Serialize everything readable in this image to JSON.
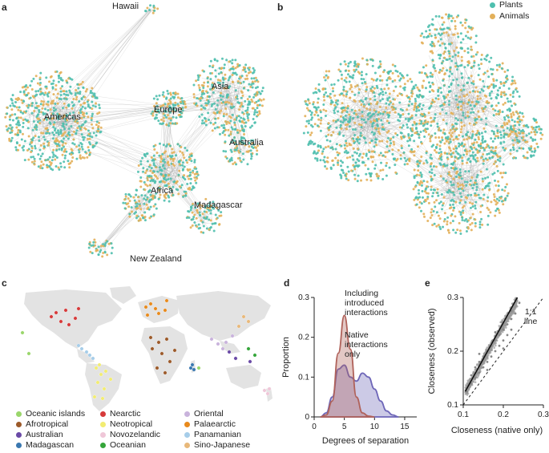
{
  "panels": {
    "a": {
      "letter": "a",
      "regions": [
        "Hawaii",
        "Americas",
        "Europe",
        "Asia",
        "Australia",
        "Africa",
        "Madagascar",
        "New Zealand"
      ]
    },
    "b": {
      "letter": "b",
      "legend": [
        {
          "label": "Plants",
          "color": "#4fbfae"
        },
        {
          "label": "Animals",
          "color": "#e3b05a"
        }
      ]
    },
    "c": {
      "letter": "c",
      "legend": [
        {
          "label": "Oceanic islands",
          "color": "#9ad66b"
        },
        {
          "label": "Afrotropical",
          "color": "#9c5a2a"
        },
        {
          "label": "Australian",
          "color": "#6a4aa6"
        },
        {
          "label": "Madagascan",
          "color": "#3a78b0"
        },
        {
          "label": "Nearctic",
          "color": "#d63a3a"
        },
        {
          "label": "Neotropical",
          "color": "#f2ec72"
        },
        {
          "label": "Novozelandic",
          "color": "#efc7d8"
        },
        {
          "label": "Oceanian",
          "color": "#35a53a"
        },
        {
          "label": "Oriental",
          "color": "#c9b3dc"
        },
        {
          "label": "Palaearctic",
          "color": "#e88a1c"
        },
        {
          "label": "Panamanian",
          "color": "#a6cde9"
        },
        {
          "label": "Sino-Japanese",
          "color": "#e8b87a"
        }
      ]
    },
    "d": {
      "letter": "d",
      "annotation_introduced": [
        "Including",
        "introduced",
        "interactions"
      ],
      "annotation_native": [
        "Native",
        "interactions",
        "only"
      ]
    },
    "e": {
      "letter": "e",
      "annotation_line": [
        "1:1",
        "line"
      ]
    }
  },
  "chart_data": [
    {
      "type": "area",
      "panel": "d",
      "xlabel": "Degrees of separation",
      "ylabel": "Proportion",
      "xlim": [
        0,
        17
      ],
      "ylim": [
        0,
        0.3
      ],
      "xticks": [
        0,
        5,
        10,
        15
      ],
      "yticks": [
        0,
        0.1,
        0.2,
        0.3
      ],
      "series": [
        {
          "name": "Including introduced interactions",
          "color": "#b0625a",
          "x": [
            1,
            2,
            3,
            4,
            5,
            6,
            7,
            8,
            9,
            10
          ],
          "y": [
            0.0,
            0.005,
            0.04,
            0.16,
            0.255,
            0.17,
            0.05,
            0.01,
            0.002,
            0.0
          ]
        },
        {
          "name": "Native interactions only",
          "color": "#6d66b8",
          "x": [
            1,
            2,
            3,
            4,
            5,
            6,
            7,
            8,
            9,
            10,
            11,
            12,
            13,
            14
          ],
          "y": [
            0.0,
            0.01,
            0.05,
            0.12,
            0.13,
            0.1,
            0.09,
            0.11,
            0.1,
            0.07,
            0.04,
            0.015,
            0.005,
            0.0
          ]
        }
      ]
    },
    {
      "type": "scatter",
      "panel": "e",
      "xlabel": "Closeness (native only)",
      "ylabel": "Closeness (observed)",
      "xlim": [
        0.1,
        0.3
      ],
      "ylim": [
        0.1,
        0.3
      ],
      "xticks": [
        0.1,
        0.2,
        0.3
      ],
      "yticks": [
        0.1,
        0.2,
        0.3
      ],
      "points": [
        [
          0.11,
          0.125
        ],
        [
          0.12,
          0.14
        ],
        [
          0.13,
          0.15
        ],
        [
          0.13,
          0.17
        ],
        [
          0.14,
          0.16
        ],
        [
          0.14,
          0.18
        ],
        [
          0.15,
          0.17
        ],
        [
          0.15,
          0.19
        ],
        [
          0.16,
          0.18
        ],
        [
          0.16,
          0.2
        ],
        [
          0.17,
          0.19
        ],
        [
          0.17,
          0.21
        ],
        [
          0.18,
          0.2
        ],
        [
          0.18,
          0.22
        ],
        [
          0.19,
          0.21
        ],
        [
          0.19,
          0.23
        ],
        [
          0.2,
          0.22
        ],
        [
          0.2,
          0.24
        ],
        [
          0.21,
          0.23
        ],
        [
          0.21,
          0.25
        ],
        [
          0.22,
          0.24
        ],
        [
          0.22,
          0.26
        ],
        [
          0.23,
          0.27
        ],
        [
          0.12,
          0.155
        ],
        [
          0.14,
          0.195
        ],
        [
          0.16,
          0.165
        ],
        [
          0.18,
          0.235
        ],
        [
          0.2,
          0.205
        ],
        [
          0.22,
          0.275
        ],
        [
          0.24,
          0.29
        ]
      ],
      "fit_line": [
        [
          0.105,
          0.125
        ],
        [
          0.235,
          0.3
        ]
      ],
      "identity_line": [
        [
          0.1,
          0.1
        ],
        [
          0.3,
          0.3
        ]
      ]
    }
  ]
}
